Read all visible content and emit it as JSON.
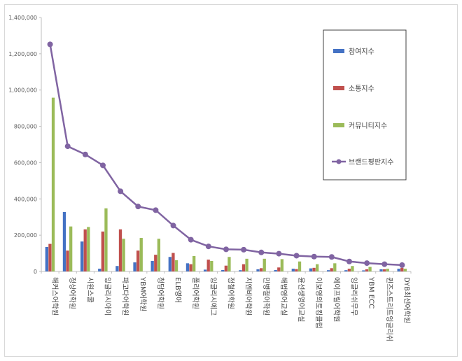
{
  "chart_data": {
    "type": "bar",
    "title": "",
    "xlabel": "",
    "ylabel": "",
    "ylim": [
      0,
      1400000
    ],
    "yticks": [
      0,
      200000,
      400000,
      600000,
      800000,
      1000000,
      1200000,
      1400000
    ],
    "ytick_labels": [
      "0",
      "200,000",
      "400,000",
      "600,000",
      "800,000",
      "1,000,000",
      "1,200,000",
      "1,400,000"
    ],
    "legend_position": "right",
    "categories": [
      "해커스어학원",
      "정상어학원",
      "시원스쿨",
      "잉글리시아이",
      "파고다어학원",
      "YBM어학원",
      "청담어학원",
      "ELB영어",
      "폴리어학원",
      "잉글리시에그",
      "정철어학원",
      "지엔비어학원",
      "민병철어학원",
      "해법영어교실",
      "윤선생영어교실",
      "이보영의토킹클럽",
      "에이프릴어학원",
      "잉글리쉬무무",
      "YBM ECC",
      "퀸즈스트리트잉글리쉬",
      "DYB최선어학원"
    ],
    "series": [
      {
        "name": "참여지수",
        "color": "#4472c4",
        "kind": "bar",
        "values": [
          135000,
          328000,
          165000,
          15000,
          30000,
          50000,
          58000,
          80000,
          45000,
          10000,
          8000,
          7000,
          12000,
          8000,
          15000,
          17000,
          7000,
          7000,
          6000,
          12000,
          15000
        ]
      },
      {
        "name": "소통지수",
        "color": "#c0504d",
        "kind": "bar",
        "values": [
          152000,
          115000,
          232000,
          220000,
          232000,
          115000,
          92000,
          102000,
          40000,
          65000,
          32000,
          40000,
          18000,
          22000,
          13000,
          20000,
          18000,
          15000,
          12000,
          12000,
          20000
        ]
      },
      {
        "name": "커뮤니티지수",
        "color": "#9bbb59",
        "kind": "bar",
        "values": [
          958000,
          248000,
          245000,
          348000,
          180000,
          185000,
          180000,
          62000,
          85000,
          58000,
          80000,
          70000,
          70000,
          68000,
          55000,
          40000,
          45000,
          30000,
          25000,
          15000,
          15000
        ]
      },
      {
        "name": "브랜드평판지수",
        "color": "#8064a2",
        "kind": "line",
        "values": [
          1252000,
          690000,
          645000,
          585000,
          442000,
          358000,
          338000,
          253000,
          175000,
          138000,
          122000,
          120000,
          105000,
          98000,
          87000,
          82000,
          80000,
          55000,
          46000,
          40000,
          35000
        ]
      }
    ]
  }
}
